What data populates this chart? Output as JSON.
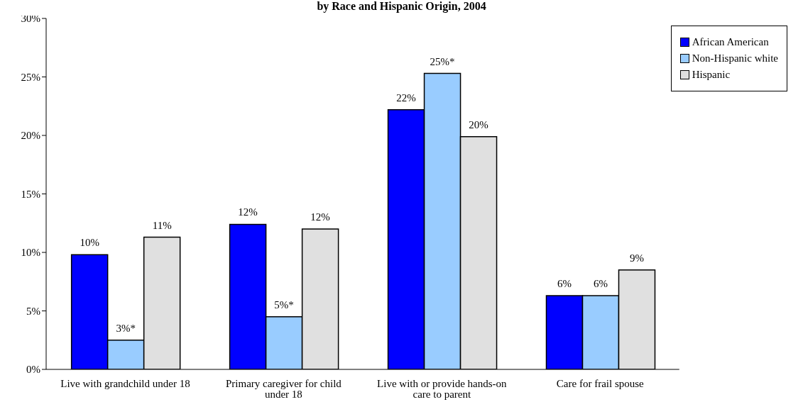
{
  "chart_data": {
    "type": "bar",
    "title": "by Race and Hispanic Origin, 2004",
    "categories": [
      "Live with grandchild under 18",
      "Primary caregiver for child under 18",
      "Live with or provide hands-on care to parent",
      "Care for frail spouse"
    ],
    "series": [
      {
        "name": "African American",
        "color": "#0000ff",
        "values": [
          9.8,
          12.4,
          22.2,
          6.3
        ],
        "value_labels": [
          "10%",
          "12%",
          "22%",
          "6%"
        ]
      },
      {
        "name": "Non-Hispanic white",
        "color": "#99ccff",
        "values": [
          2.5,
          4.5,
          25.3,
          6.3
        ],
        "value_labels": [
          "3%*",
          "5%*",
          "25%*",
          "6%"
        ]
      },
      {
        "name": "Hispanic",
        "color": "#e0e0e0",
        "values": [
          11.3,
          12.0,
          19.9,
          8.5
        ],
        "value_labels": [
          "11%",
          "12%",
          "20%",
          "9%"
        ]
      }
    ],
    "ylim": [
      0,
      30
    ],
    "yticks": [
      {
        "value": 0,
        "label": "0%"
      },
      {
        "value": 5,
        "label": "5%"
      },
      {
        "value": 10,
        "label": "10%"
      },
      {
        "value": 15,
        "label": "15%"
      },
      {
        "value": 20,
        "label": "20%"
      },
      {
        "value": 25,
        "label": "25%"
      },
      {
        "value": 30,
        "label": "30%"
      }
    ],
    "grid": false,
    "legend": "top right"
  }
}
